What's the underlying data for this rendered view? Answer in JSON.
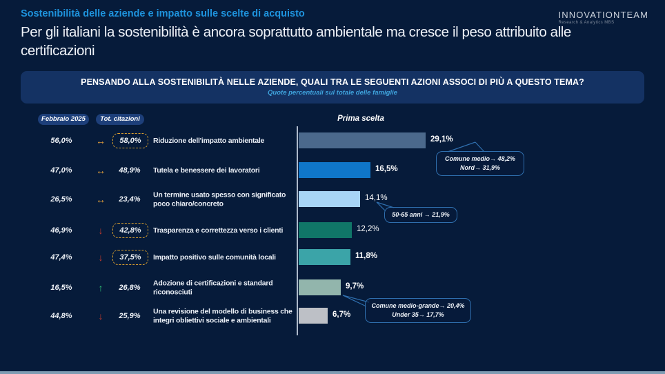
{
  "header": {
    "eyebrow": "Sostenibilità delle aziende e impatto sulle scelte di acquisto",
    "title": "Per gli italiani la sostenibilità è ancora soprattutto ambientale ma cresce il peso attribuito alle certificazioni",
    "title_lines": [
      "Per gli italiani la sostenibilità è ancora soprattutto ambientale ma cresce il peso attribuito alle",
      "certificazioni"
    ],
    "logo_name": "INNOVATIONTEAM",
    "logo_tagline": "Research & Analytics MBS"
  },
  "banner": {
    "question": "PENSANDO ALLA SOSTENIBILITÀ NELLE AZIENDE, QUALI TRA LE SEGUENTI AZIONI ASSOCI DI PIÙ A QUESTO TEMA?",
    "note": "Quote percentuali sul totale delle famiglie"
  },
  "comparison": {
    "col_febbraio": "Febbraio 2025",
    "col_citazioni": "Tot. citazioni",
    "trend_glyphs": {
      "stable": "↔",
      "down": "↓",
      "up": "↑"
    },
    "trend_colors": {
      "stable": "#f2a93b",
      "down": "#c23a2e",
      "up": "#2dbd74"
    },
    "rows": [
      {
        "feb": "56,0%",
        "trend": "stable",
        "tot": "58,0%",
        "tot_boxed": true,
        "label": "Riduzione dell'impatto ambientale"
      },
      {
        "feb": "47,0%",
        "trend": "stable",
        "tot": "48,9%",
        "tot_boxed": false,
        "label": "Tutela e benessere dei lavoratori"
      },
      {
        "feb": "26,5%",
        "trend": "stable",
        "tot": "23,4%",
        "tot_boxed": false,
        "label": "Un termine usato spesso con significato poco chiaro/concreto"
      },
      {
        "feb": "46,9%",
        "trend": "down",
        "tot": "42,8%",
        "tot_boxed": true,
        "label": "Trasparenza e correttezza verso i clienti"
      },
      {
        "feb": "47,4%",
        "trend": "down",
        "tot": "37,5%",
        "tot_boxed": true,
        "label": "Impatto positivo sulle comunità locali"
      },
      {
        "feb": "16,5%",
        "trend": "up",
        "tot": "26,8%",
        "tot_boxed": false,
        "label": "Adozione di certificazioni e standard riconosciuti"
      },
      {
        "feb": "44,8%",
        "trend": "down",
        "tot": "25,9%",
        "tot_boxed": false,
        "label": "Una revisione del modello di business che integri obliettivi sociale e ambientali"
      }
    ]
  },
  "chart_data": {
    "type": "bar",
    "orientation": "horizontal",
    "title": "Prima scelta",
    "categories": [
      "Riduzione dell'impatto ambientale",
      "Tutela e benessere dei lavoratori",
      "Un termine usato spesso con significato poco chiaro/concreto",
      "Trasparenza e correttezza verso i clienti",
      "Impatto positivo sulle comunità locali",
      "Adozione di certificazioni e standard riconosciuti",
      "Una revisione del modello di business che integri obliettivi sociale e ambientali"
    ],
    "values": [
      29.1,
      16.5,
      14.1,
      12.2,
      11.8,
      9.7,
      6.7
    ],
    "value_labels": [
      "29,1%",
      "16,5%",
      "14,1%",
      "12,2%",
      "11,8%",
      "9,7%",
      "6,7%"
    ],
    "value_label_bold": [
      true,
      true,
      false,
      false,
      true,
      true,
      true
    ],
    "bar_colors": [
      "#4b698c",
      "#0f76c9",
      "#a7d4f6",
      "#107668",
      "#3ba4a8",
      "#92b5ac",
      "#bdc0c6"
    ],
    "xlim": [
      0,
      31
    ],
    "unit": "percent",
    "legend": false,
    "grid": false,
    "annotations": [
      {
        "bar_index": 0,
        "lines": [
          "Comune medio→ 48,2%",
          "Nord→ 31,9%"
        ]
      },
      {
        "bar_index": 2,
        "lines": [
          "50-65 anni → 21,9%"
        ]
      },
      {
        "bar_index": 5,
        "lines": [
          "Comune medio-grande→ 20,4%",
          "Under 35→ 17,7%"
        ]
      }
    ]
  },
  "colors": {
    "background": "#061b3a",
    "banner_bg": "#143263",
    "badge_bg": "#1d3f7a",
    "eyebrow_blue": "#1e93dd",
    "note_blue": "#3fa3dc",
    "callout_border": "#2f6fae",
    "dashed_box_orange": "#d89f2e",
    "footer_strip": "#7f9cb3"
  }
}
